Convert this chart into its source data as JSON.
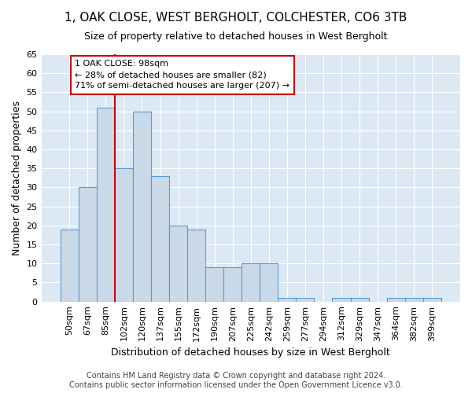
{
  "title": "1, OAK CLOSE, WEST BERGHOLT, COLCHESTER, CO6 3TB",
  "subtitle": "Size of property relative to detached houses in West Bergholt",
  "xlabel": "Distribution of detached houses by size in West Bergholt",
  "ylabel": "Number of detached properties",
  "categories": [
    "50sqm",
    "67sqm",
    "85sqm",
    "102sqm",
    "120sqm",
    "137sqm",
    "155sqm",
    "172sqm",
    "190sqm",
    "207sqm",
    "225sqm",
    "242sqm",
    "259sqm",
    "277sqm",
    "294sqm",
    "312sqm",
    "329sqm",
    "347sqm",
    "364sqm",
    "382sqm",
    "399sqm"
  ],
  "values": [
    19,
    30,
    51,
    35,
    50,
    33,
    20,
    19,
    9,
    9,
    10,
    10,
    1,
    1,
    0,
    1,
    1,
    0,
    1,
    1,
    1
  ],
  "bar_color": "#c9d9e8",
  "bar_edge_color": "#5b9bd5",
  "vline_x_index": 2.5,
  "vline_color": "#cc0000",
  "vline_label": "1 OAK CLOSE: 98sqm",
  "annotation_line1": "← 28% of detached houses are smaller (82)",
  "annotation_line2": "71% of semi-detached houses are larger (207) →",
  "ylim": [
    0,
    65
  ],
  "yticks": [
    0,
    5,
    10,
    15,
    20,
    25,
    30,
    35,
    40,
    45,
    50,
    55,
    60,
    65
  ],
  "footer_line1": "Contains HM Land Registry data © Crown copyright and database right 2024.",
  "footer_line2": "Contains public sector information licensed under the Open Government Licence v3.0.",
  "background_color": "#dce9f5",
  "fig_background_color": "#ffffff",
  "grid_color": "#ffffff",
  "title_fontsize": 11,
  "subtitle_fontsize": 9,
  "axis_label_fontsize": 9,
  "tick_fontsize": 8,
  "footer_fontsize": 7
}
